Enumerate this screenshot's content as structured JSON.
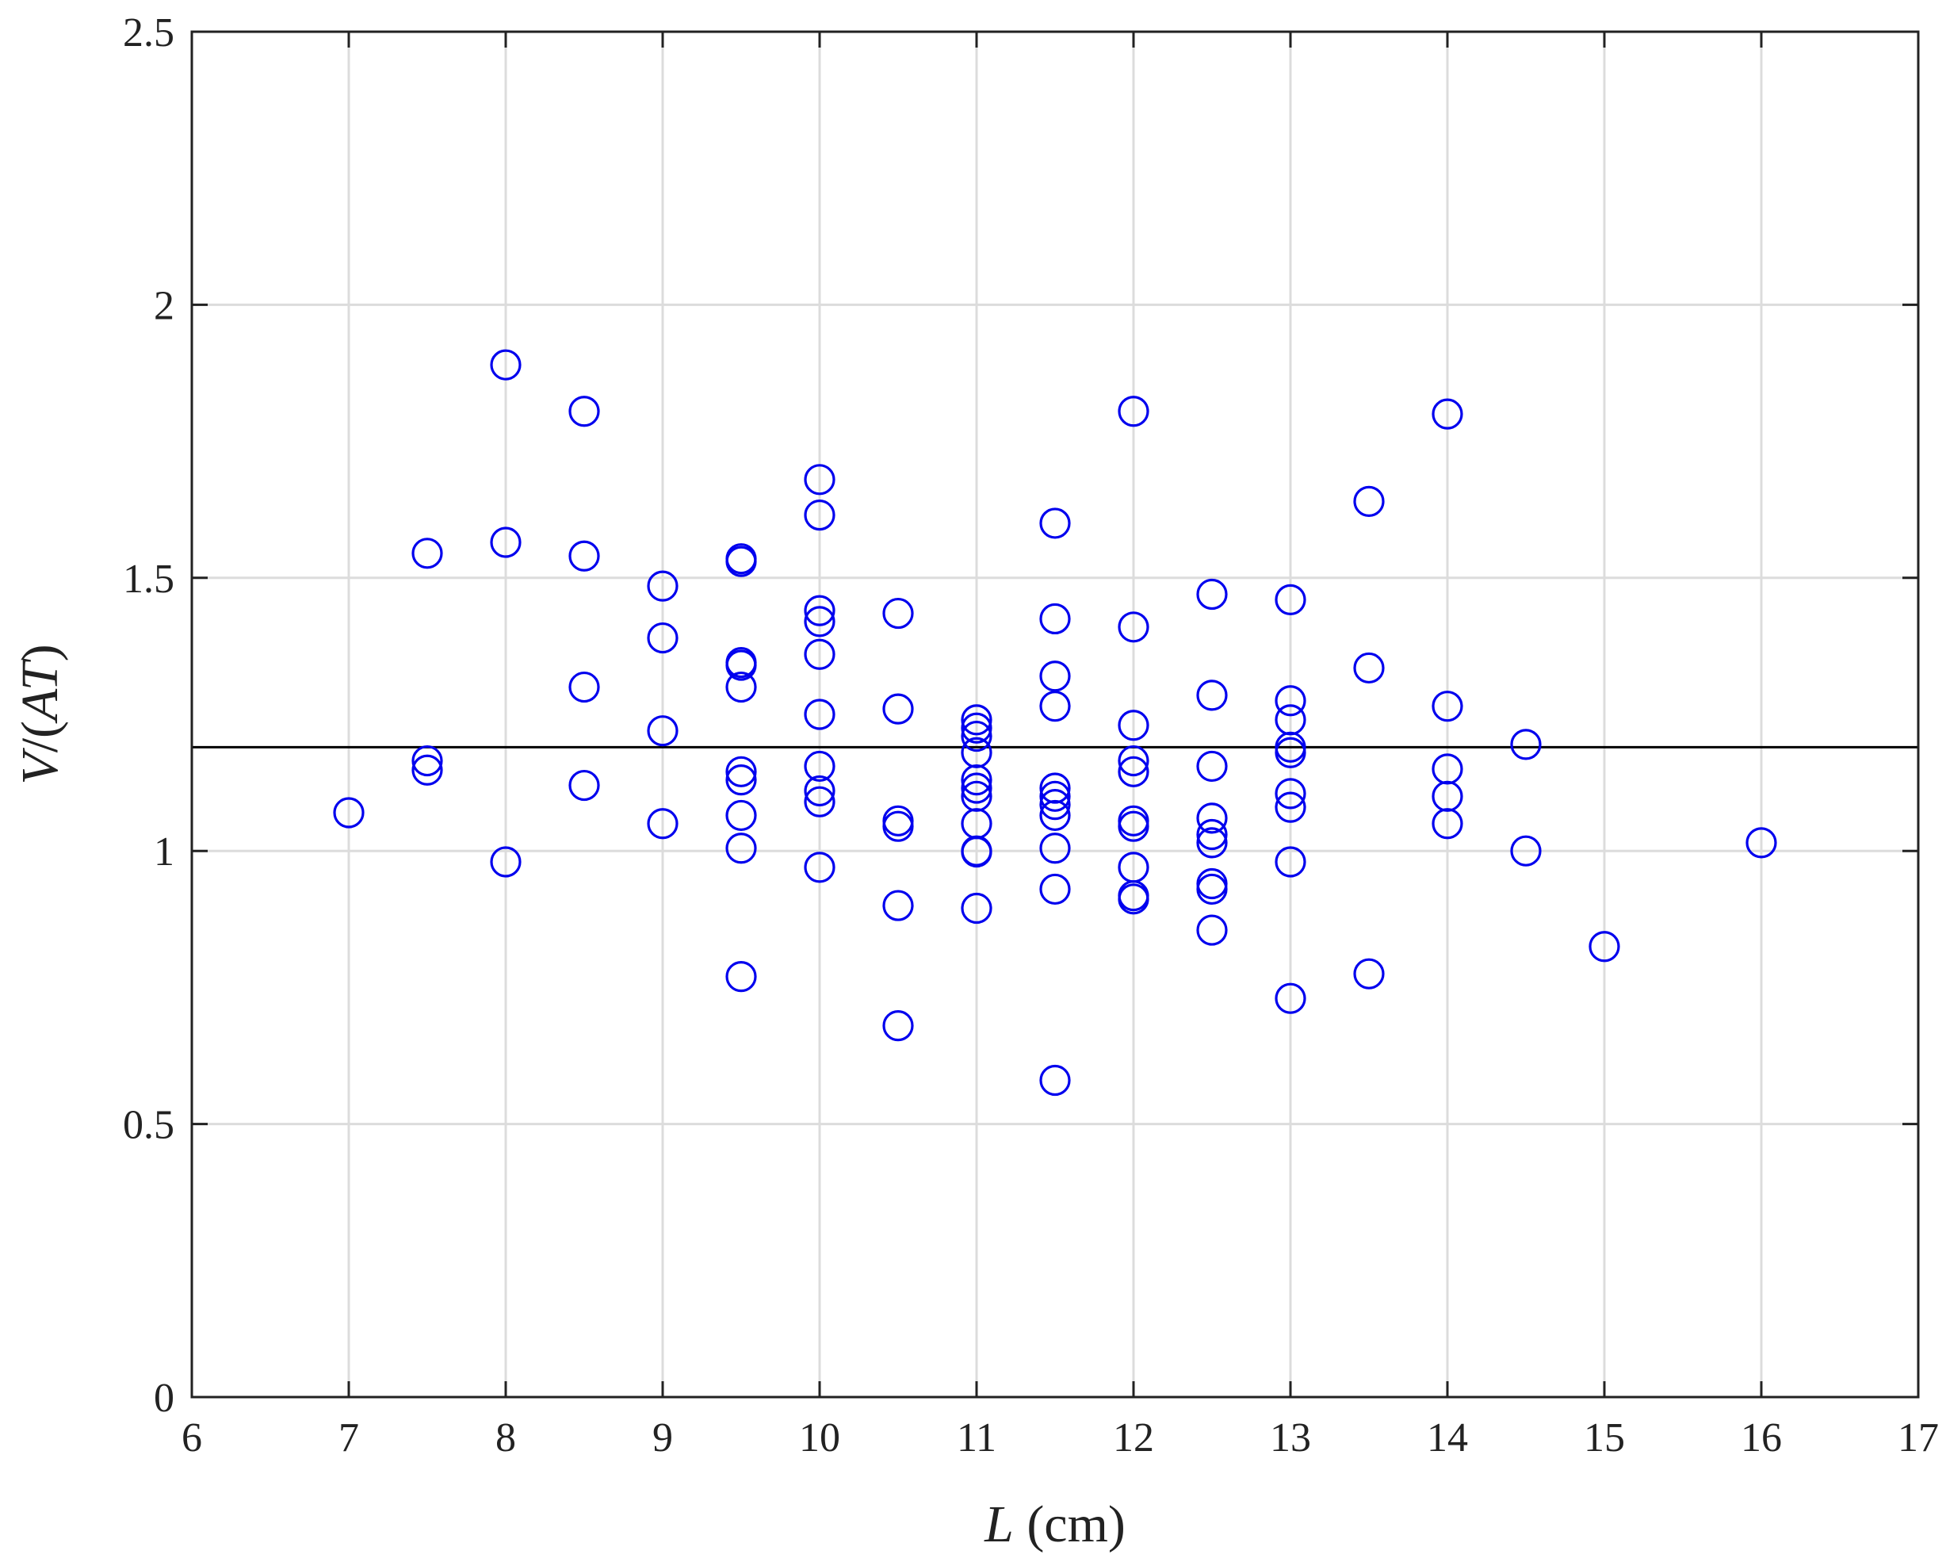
{
  "chart_data": {
    "type": "scatter",
    "xlabel_italic": "L",
    "xlabel_rest": " (cm)",
    "ylabel_parts": [
      "V",
      "/(",
      "AT",
      ")"
    ],
    "xlim": [
      6,
      17
    ],
    "ylim": [
      0,
      2.5
    ],
    "xticks": [
      6,
      7,
      8,
      9,
      10,
      11,
      12,
      13,
      14,
      15,
      16,
      17
    ],
    "yticks": [
      0,
      0.5,
      1,
      1.5,
      2,
      2.5
    ],
    "ytick_labels": [
      "0",
      "0.5",
      "1",
      "1.5",
      "2",
      "2.5"
    ],
    "grid": true,
    "marker": "circle-open",
    "marker_color": "#0000ee",
    "reference_line_y": 1.19,
    "reference_line_color": "#000000",
    "points": [
      [
        7,
        1.07
      ],
      [
        7.5,
        1.545
      ],
      [
        7.5,
        1.165
      ],
      [
        7.5,
        1.148
      ],
      [
        8,
        1.89
      ],
      [
        8,
        1.565
      ],
      [
        8,
        0.98
      ],
      [
        8.5,
        1.805
      ],
      [
        8.5,
        1.54
      ],
      [
        8.5,
        1.3
      ],
      [
        8.5,
        1.12
      ],
      [
        9,
        1.485
      ],
      [
        9,
        1.39
      ],
      [
        9,
        1.22
      ],
      [
        9,
        1.05
      ],
      [
        9.5,
        1.535
      ],
      [
        9.5,
        1.53
      ],
      [
        9.5,
        1.345
      ],
      [
        9.5,
        1.34
      ],
      [
        9.5,
        1.3
      ],
      [
        9.5,
        1.145
      ],
      [
        9.5,
        1.13
      ],
      [
        9.5,
        1.065
      ],
      [
        9.5,
        1.005
      ],
      [
        9.5,
        0.77
      ],
      [
        10,
        1.68
      ],
      [
        10,
        1.615
      ],
      [
        10,
        1.44
      ],
      [
        10,
        1.42
      ],
      [
        10,
        1.36
      ],
      [
        10,
        1.25
      ],
      [
        10,
        1.155
      ],
      [
        10,
        1.11
      ],
      [
        10,
        1.09
      ],
      [
        10,
        0.97
      ],
      [
        10.5,
        1.435
      ],
      [
        10.5,
        1.26
      ],
      [
        10.5,
        1.055
      ],
      [
        10.5,
        1.045
      ],
      [
        10.5,
        0.9
      ],
      [
        10.5,
        0.68
      ],
      [
        11,
        1.24
      ],
      [
        11,
        1.225
      ],
      [
        11,
        1.21
      ],
      [
        11,
        1.18
      ],
      [
        11,
        1.13
      ],
      [
        11,
        1.115
      ],
      [
        11,
        1.1
      ],
      [
        11,
        1.05
      ],
      [
        11,
        1.0
      ],
      [
        11,
        0.998
      ],
      [
        11,
        0.895
      ],
      [
        11.5,
        1.6
      ],
      [
        11.5,
        1.425
      ],
      [
        11.5,
        1.32
      ],
      [
        11.5,
        1.265
      ],
      [
        11.5,
        1.115
      ],
      [
        11.5,
        1.1
      ],
      [
        11.5,
        1.085
      ],
      [
        11.5,
        1.065
      ],
      [
        11.5,
        1.005
      ],
      [
        11.5,
        0.93
      ],
      [
        11.5,
        0.58
      ],
      [
        12,
        1.805
      ],
      [
        12,
        1.41
      ],
      [
        12,
        1.23
      ],
      [
        12,
        1.165
      ],
      [
        12,
        1.145
      ],
      [
        12,
        1.055
      ],
      [
        12,
        1.045
      ],
      [
        12,
        0.97
      ],
      [
        12,
        0.918
      ],
      [
        12,
        0.912
      ],
      [
        12.5,
        1.47
      ],
      [
        12.5,
        1.285
      ],
      [
        12.5,
        1.155
      ],
      [
        12.5,
        1.06
      ],
      [
        12.5,
        1.03
      ],
      [
        12.5,
        1.015
      ],
      [
        12.5,
        0.94
      ],
      [
        12.5,
        0.93
      ],
      [
        12.5,
        0.855
      ],
      [
        13,
        1.46
      ],
      [
        13,
        1.275
      ],
      [
        13,
        1.24
      ],
      [
        13,
        1.19
      ],
      [
        13,
        1.18
      ],
      [
        13,
        1.105
      ],
      [
        13,
        1.08
      ],
      [
        13,
        0.98
      ],
      [
        13,
        0.73
      ],
      [
        13.5,
        1.64
      ],
      [
        13.5,
        1.335
      ],
      [
        13.5,
        0.775
      ],
      [
        14,
        1.8
      ],
      [
        14,
        1.265
      ],
      [
        14,
        1.15
      ],
      [
        14,
        1.1
      ],
      [
        14,
        1.05
      ],
      [
        14.5,
        1.195
      ],
      [
        14.5,
        1.0
      ],
      [
        15,
        0.825
      ],
      [
        16,
        1.015
      ]
    ]
  }
}
